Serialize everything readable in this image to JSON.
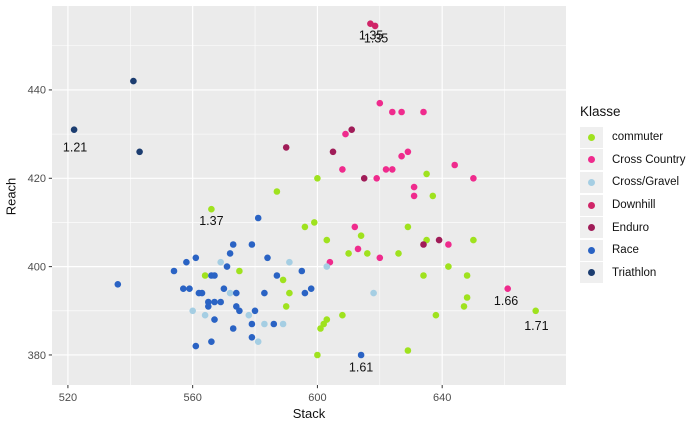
{
  "figure": {
    "background": "#ffffff",
    "panel_background": "#ebebeb",
    "grid_color": "#ffffff",
    "tick_color": "#333333",
    "tick_label_color": "#4d4d4d",
    "annotation_color": "#111111"
  },
  "axes": {
    "x": {
      "title": "Stack",
      "range": [
        514.9,
        679.7
      ],
      "major_ticks": [
        520,
        560,
        600,
        640
      ],
      "minor_ticks": [
        540,
        580,
        620,
        660
      ]
    },
    "y": {
      "title": "Reach",
      "range": [
        373.2,
        459.0
      ],
      "major_ticks": [
        380,
        400,
        420,
        440
      ],
      "minor_ticks": [
        390,
        410,
        430,
        450
      ]
    }
  },
  "legend": {
    "title": "Klasse",
    "key_background": "#efefef",
    "items": [
      {
        "label": "commuter",
        "color": "#9fe21e"
      },
      {
        "label": "Cross Country",
        "color": "#ef2b8d"
      },
      {
        "label": "Cross/Gravel",
        "color": "#a5cee3"
      },
      {
        "label": "Downhill",
        "color": "#d02568"
      },
      {
        "label": "Enduro",
        "color": "#a01c58"
      },
      {
        "label": "Race",
        "color": "#2a63c4"
      },
      {
        "label": "Triathlon",
        "color": "#1c3d70"
      }
    ]
  },
  "chart_data": {
    "type": "scatter",
    "title": "",
    "xlabel": "Stack",
    "ylabel": "Reach",
    "xlim": [
      514.9,
      679.7
    ],
    "ylim": [
      373.2,
      459.0
    ],
    "grid": true,
    "legend_position": "right",
    "point_radius": 3.3,
    "series": [
      {
        "name": "commuter",
        "color": "#9fe21e",
        "points": [
          [
            566,
            413
          ],
          [
            587,
            417
          ],
          [
            600,
            420
          ],
          [
            635,
            421
          ],
          [
            596,
            409
          ],
          [
            599,
            410
          ],
          [
            603,
            406
          ],
          [
            614,
            407
          ],
          [
            629,
            409
          ],
          [
            637,
            416
          ],
          [
            610,
            403
          ],
          [
            616,
            403
          ],
          [
            626,
            403
          ],
          [
            575,
            399
          ],
          [
            564,
            398
          ],
          [
            589,
            397
          ],
          [
            591,
            394
          ],
          [
            590,
            391
          ],
          [
            635,
            406
          ],
          [
            634,
            398
          ],
          [
            650,
            406
          ],
          [
            642,
            400
          ],
          [
            648,
            398
          ],
          [
            648,
            393
          ],
          [
            647,
            391
          ],
          [
            670,
            390
          ],
          [
            638,
            389
          ],
          [
            603,
            388
          ],
          [
            608,
            389
          ],
          [
            601,
            386
          ],
          [
            602,
            387
          ],
          [
            600,
            380
          ],
          [
            629,
            381
          ]
        ]
      },
      {
        "name": "Cross Country",
        "color": "#ef2b8d",
        "points": [
          [
            620,
            437
          ],
          [
            624,
            435
          ],
          [
            627,
            435
          ],
          [
            634,
            435
          ],
          [
            609,
            430
          ],
          [
            629,
            426
          ],
          [
            627,
            425
          ],
          [
            608,
            422
          ],
          [
            622,
            422
          ],
          [
            624,
            422
          ],
          [
            619,
            420
          ],
          [
            631,
            418
          ],
          [
            631,
            416
          ],
          [
            644,
            423
          ],
          [
            650,
            420
          ],
          [
            612,
            409
          ],
          [
            613,
            404
          ],
          [
            620,
            402
          ],
          [
            604,
            401
          ],
          [
            642,
            405
          ],
          [
            661,
            395
          ]
        ]
      },
      {
        "name": "Cross/Gravel",
        "color": "#a5cee3",
        "points": [
          [
            569,
            401
          ],
          [
            591,
            401
          ],
          [
            603,
            400
          ],
          [
            572,
            394
          ],
          [
            618,
            394
          ],
          [
            560,
            390
          ],
          [
            564,
            389
          ],
          [
            578,
            389
          ],
          [
            583,
            387
          ],
          [
            589,
            387
          ],
          [
            581,
            383
          ]
        ]
      },
      {
        "name": "Downhill",
        "color": "#d02568",
        "points": [
          [
            617,
            455
          ],
          [
            618.5,
            454.5
          ]
        ]
      },
      {
        "name": "Enduro",
        "color": "#a01c58",
        "points": [
          [
            611,
            431
          ],
          [
            590,
            427
          ],
          [
            605,
            426
          ],
          [
            615,
            420
          ],
          [
            634,
            405
          ],
          [
            639,
            406
          ]
        ]
      },
      {
        "name": "Race",
        "color": "#2a63c4",
        "points": [
          [
            536,
            396
          ],
          [
            554,
            399
          ],
          [
            558,
            401
          ],
          [
            561,
            402
          ],
          [
            581,
            411
          ],
          [
            573,
            405
          ],
          [
            579,
            405
          ],
          [
            572,
            403
          ],
          [
            571,
            400
          ],
          [
            566,
            398
          ],
          [
            567,
            398
          ],
          [
            584,
            402
          ],
          [
            587,
            398
          ],
          [
            595,
            399
          ],
          [
            557,
            395
          ],
          [
            559,
            395
          ],
          [
            562,
            394
          ],
          [
            563,
            394
          ],
          [
            570,
            395
          ],
          [
            574,
            394
          ],
          [
            565,
            392
          ],
          [
            567,
            392
          ],
          [
            569,
            392
          ],
          [
            583,
            394
          ],
          [
            596,
            394
          ],
          [
            598,
            395
          ],
          [
            565,
            391
          ],
          [
            574,
            391
          ],
          [
            575,
            390
          ],
          [
            580,
            390
          ],
          [
            567,
            388
          ],
          [
            579,
            387
          ],
          [
            586,
            387
          ],
          [
            579,
            384
          ],
          [
            573,
            386
          ],
          [
            566,
            383
          ],
          [
            561,
            382
          ],
          [
            614,
            380
          ]
        ]
      },
      {
        "name": "Triathlon",
        "color": "#1c3d70",
        "points": [
          [
            541,
            442
          ],
          [
            522,
            431
          ],
          [
            543,
            426
          ]
        ]
      }
    ],
    "annotations": [
      {
        "text": "1.35",
        "x": 617.2,
        "y": 452.3
      },
      {
        "text": "1.35",
        "x": 618.8,
        "y": 451.6
      },
      {
        "text": "1.21",
        "x": 522.3,
        "y": 427.0
      },
      {
        "text": "1.37",
        "x": 566.0,
        "y": 410.3
      },
      {
        "text": "1.61",
        "x": 614.0,
        "y": 377.2
      },
      {
        "text": "1.66",
        "x": 660.5,
        "y": 392.2
      },
      {
        "text": "1.71",
        "x": 670.2,
        "y": 386.6
      }
    ]
  }
}
